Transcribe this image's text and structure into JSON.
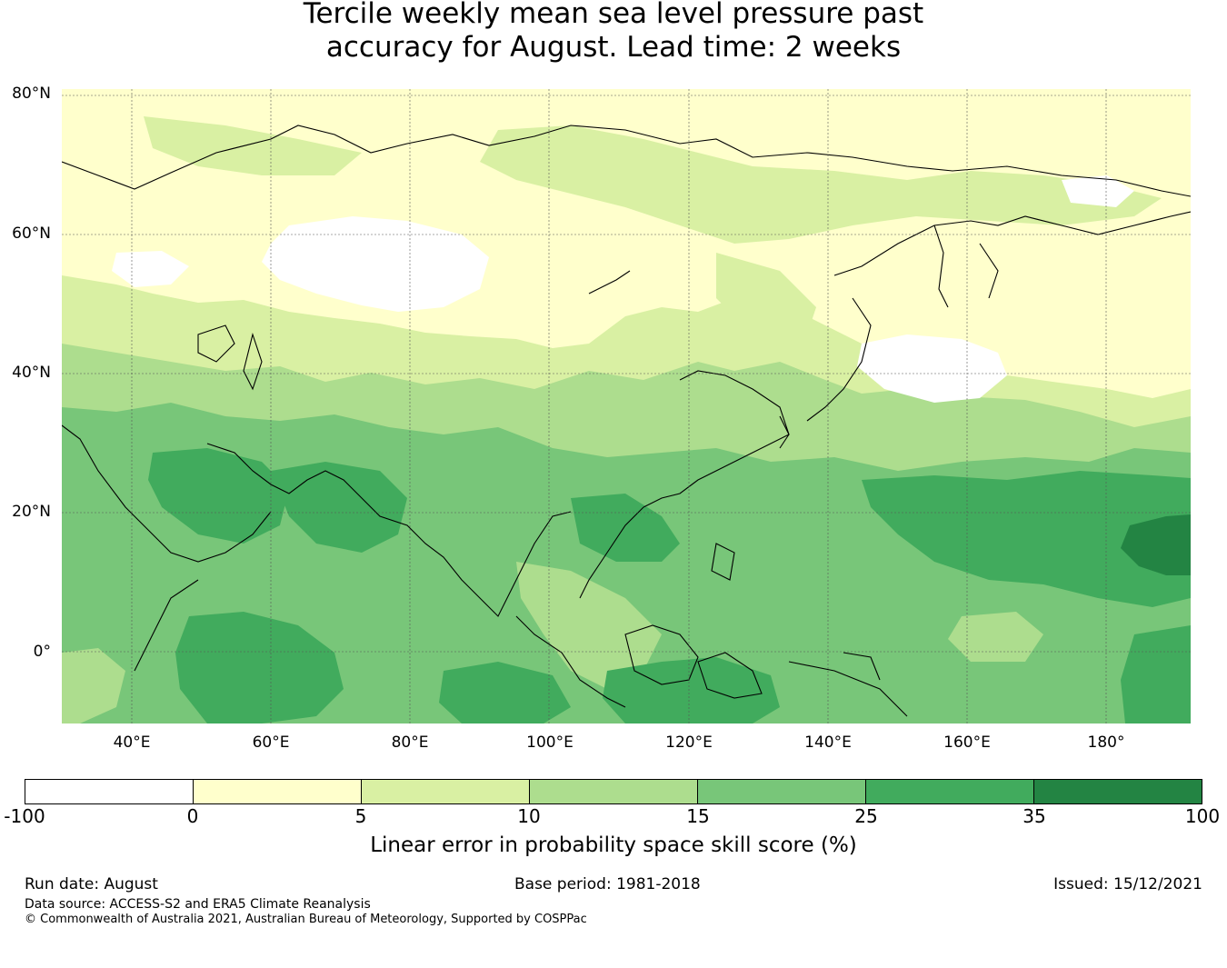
{
  "title": {
    "line1": "Tercile weekly mean sea level pressure past",
    "line2": "accuracy for August. Lead time: 2 weeks"
  },
  "map": {
    "lat_ticks": [
      "80°N",
      "60°N",
      "40°N",
      "20°N",
      "0°"
    ],
    "lon_ticks": [
      "40°E",
      "60°E",
      "80°E",
      "100°E",
      "120°E",
      "140°E",
      "160°E",
      "180°"
    ],
    "lat_range": [
      -10,
      82
    ],
    "lon_range": [
      30,
      192
    ]
  },
  "colorbar": {
    "colors": [
      "#ffffff",
      "#ffffcc",
      "#d9f0a3",
      "#addd8e",
      "#78c679",
      "#41ab5d",
      "#238443"
    ],
    "ticks": [
      "-100",
      "0",
      "5",
      "10",
      "15",
      "25",
      "35",
      "100"
    ],
    "label": "Linear error in probability space skill score (%)"
  },
  "footer": {
    "run_date": "Run date: August",
    "base_period": "Base period: 1981-2018",
    "issued": "Issued: 15/12/2021",
    "data_source": "Data source: ACCESS-S2 and ERA5 Climate Reanalysis",
    "copyright": "© Commonwealth of Australia 2021, Australian Bureau of Meteorology, Supported by COSPPac"
  }
}
